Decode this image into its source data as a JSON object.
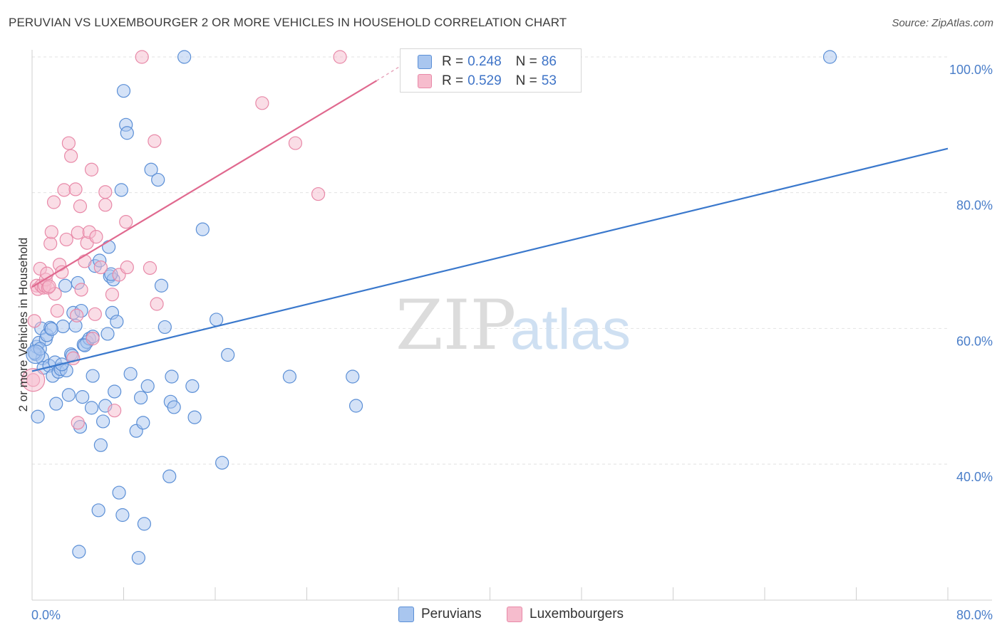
{
  "header": {
    "title": "PERUVIAN VS LUXEMBOURGER 2 OR MORE VEHICLES IN HOUSEHOLD CORRELATION CHART",
    "source": "Source: ZipAtlas.com"
  },
  "watermark": {
    "zip": "ZIP",
    "atlas": "atlas"
  },
  "legend": {
    "rows": [
      {
        "r_label": "R =",
        "r_value": "0.248",
        "n_label": "N =",
        "n_value": "86"
      },
      {
        "r_label": "R =",
        "r_value": "0.529",
        "n_label": "N =",
        "n_value": "53"
      }
    ]
  },
  "bottom_legend": {
    "peruvians": "Peruvians",
    "luxembourgers": "Luxembourgers"
  },
  "colors": {
    "blue_fill": "#a9c6ef",
    "blue_stroke": "#5b8fd6",
    "blue_line": "#3a78cc",
    "pink_fill": "#f6bccd",
    "pink_stroke": "#e889a8",
    "pink_line": "#e0698f",
    "grid": "#e2e2e2",
    "tick_text": "#4a7ec9"
  },
  "chart_data": {
    "type": "scatter",
    "title": "PERUVIAN VS LUXEMBOURGER 2 OR MORE VEHICLES IN HOUSEHOLD CORRELATION CHART",
    "xlabel": "",
    "ylabel": "2 or more Vehicles in Household",
    "xlim": [
      0,
      80
    ],
    "ylim": [
      20,
      102
    ],
    "x_tick_labels": [
      "0.0%",
      "80.0%"
    ],
    "y_ticks": [
      {
        "value": 40,
        "label": "40.0%"
      },
      {
        "value": 60,
        "label": "60.0%"
      },
      {
        "value": 80,
        "label": "80.0%"
      },
      {
        "value": 100,
        "label": "100.0%"
      }
    ],
    "series": [
      {
        "name": "Peruvians",
        "color": "blue",
        "R": 0.248,
        "N": 86,
        "trend": {
          "x": [
            0,
            80
          ],
          "y": [
            53.7,
            86.5
          ]
        },
        "points": [
          [
            0.3,
            56.2
          ],
          [
            0.4,
            57.3
          ],
          [
            0.5,
            47.0
          ],
          [
            0.6,
            57.9
          ],
          [
            0.8,
            60.0
          ],
          [
            0.9,
            55.6
          ],
          [
            1.0,
            54.2
          ],
          [
            1.2,
            58.4
          ],
          [
            1.3,
            59.0
          ],
          [
            1.5,
            54.5
          ],
          [
            1.6,
            60.1
          ],
          [
            1.8,
            53.0
          ],
          [
            2.0,
            55.0
          ],
          [
            2.1,
            48.9
          ],
          [
            2.3,
            53.6
          ],
          [
            2.5,
            54.0
          ],
          [
            2.7,
            60.3
          ],
          [
            2.9,
            66.3
          ],
          [
            3.0,
            53.8
          ],
          [
            3.2,
            50.2
          ],
          [
            3.4,
            56.2
          ],
          [
            3.6,
            62.3
          ],
          [
            3.8,
            60.4
          ],
          [
            4.0,
            66.7
          ],
          [
            4.2,
            45.5
          ],
          [
            4.3,
            62.6
          ],
          [
            4.4,
            49.9
          ],
          [
            4.5,
            57.6
          ],
          [
            4.8,
            58.0
          ],
          [
            5.0,
            58.5
          ],
          [
            5.3,
            53.0
          ],
          [
            5.2,
            48.3
          ],
          [
            5.5,
            69.2
          ],
          [
            5.8,
            33.2
          ],
          [
            6.0,
            42.8
          ],
          [
            6.2,
            46.3
          ],
          [
            6.4,
            48.6
          ],
          [
            6.6,
            59.2
          ],
          [
            6.8,
            67.7
          ],
          [
            7.0,
            62.3
          ],
          [
            7.2,
            50.7
          ],
          [
            7.4,
            61.0
          ],
          [
            7.6,
            35.8
          ],
          [
            7.8,
            80.4
          ],
          [
            7.9,
            32.5
          ],
          [
            8.0,
            95.0
          ],
          [
            8.2,
            90.0
          ],
          [
            8.3,
            88.8
          ],
          [
            8.6,
            53.3
          ],
          [
            9.1,
            44.9
          ],
          [
            9.3,
            26.2
          ],
          [
            9.5,
            49.8
          ],
          [
            9.7,
            46.1
          ],
          [
            9.8,
            31.2
          ],
          [
            10.1,
            51.5
          ],
          [
            10.4,
            83.4
          ],
          [
            11.0,
            81.9
          ],
          [
            11.3,
            66.3
          ],
          [
            11.6,
            60.2
          ],
          [
            12.0,
            38.2
          ],
          [
            12.1,
            49.2
          ],
          [
            12.2,
            52.9
          ],
          [
            12.4,
            48.4
          ],
          [
            13.3,
            100.0
          ],
          [
            14.0,
            51.5
          ],
          [
            14.2,
            46.9
          ],
          [
            14.9,
            74.6
          ],
          [
            16.1,
            61.3
          ],
          [
            16.6,
            40.2
          ],
          [
            17.1,
            56.1
          ],
          [
            22.5,
            52.9
          ],
          [
            28.0,
            52.9
          ],
          [
            28.3,
            48.6
          ],
          [
            69.7,
            100.0
          ],
          [
            4.1,
            27.1
          ],
          [
            6.7,
            72.0
          ],
          [
            7.1,
            67.2
          ],
          [
            5.3,
            58.8
          ],
          [
            2.6,
            54.7
          ],
          [
            1.7,
            59.9
          ],
          [
            0.2,
            56.4
          ],
          [
            3.5,
            56.0
          ],
          [
            6.9,
            68.0
          ],
          [
            4.6,
            57.5
          ],
          [
            5.9,
            70.0
          ],
          [
            0.7,
            57.0
          ]
        ]
      },
      {
        "name": "Luxembourgers",
        "color": "pink",
        "R": 0.529,
        "N": 53,
        "trend": {
          "x": [
            0,
            30.1
          ],
          "y": [
            66.1,
            96.5
          ]
        },
        "trend_dashed": {
          "x": [
            30.1,
            33.0
          ],
          "y": [
            96.5,
            99.5
          ]
        },
        "points": [
          [
            0.1,
            52.4
          ],
          [
            0.2,
            61.1
          ],
          [
            0.4,
            66.3
          ],
          [
            0.5,
            65.8
          ],
          [
            0.7,
            68.8
          ],
          [
            0.8,
            66.3
          ],
          [
            1.0,
            66.0
          ],
          [
            1.1,
            66.3
          ],
          [
            1.2,
            67.2
          ],
          [
            1.3,
            68.1
          ],
          [
            1.4,
            66.0
          ],
          [
            1.6,
            72.5
          ],
          [
            1.7,
            74.2
          ],
          [
            1.9,
            78.6
          ],
          [
            2.0,
            65.1
          ],
          [
            2.2,
            62.6
          ],
          [
            2.4,
            69.4
          ],
          [
            2.6,
            68.3
          ],
          [
            2.8,
            80.4
          ],
          [
            3.0,
            73.1
          ],
          [
            3.2,
            87.3
          ],
          [
            3.4,
            85.4
          ],
          [
            3.6,
            55.6
          ],
          [
            3.8,
            80.5
          ],
          [
            4.0,
            74.1
          ],
          [
            4.2,
            78.0
          ],
          [
            4.3,
            65.7
          ],
          [
            4.6,
            69.9
          ],
          [
            4.8,
            72.6
          ],
          [
            5.0,
            74.2
          ],
          [
            5.2,
            83.4
          ],
          [
            5.3,
            58.5
          ],
          [
            5.5,
            62.1
          ],
          [
            5.6,
            73.5
          ],
          [
            6.0,
            69.0
          ],
          [
            6.4,
            78.2
          ],
          [
            6.4,
            80.1
          ],
          [
            7.0,
            65.0
          ],
          [
            7.2,
            47.9
          ],
          [
            7.6,
            67.9
          ],
          [
            8.2,
            75.7
          ],
          [
            8.3,
            69.0
          ],
          [
            9.6,
            100.0
          ],
          [
            10.3,
            68.9
          ],
          [
            10.7,
            87.6
          ],
          [
            10.9,
            63.6
          ],
          [
            20.1,
            93.2
          ],
          [
            23.0,
            87.3
          ],
          [
            25.0,
            79.8
          ],
          [
            26.9,
            100.0
          ],
          [
            4.0,
            46.1
          ],
          [
            1.5,
            66.2
          ],
          [
            3.9,
            61.9
          ]
        ]
      }
    ]
  }
}
